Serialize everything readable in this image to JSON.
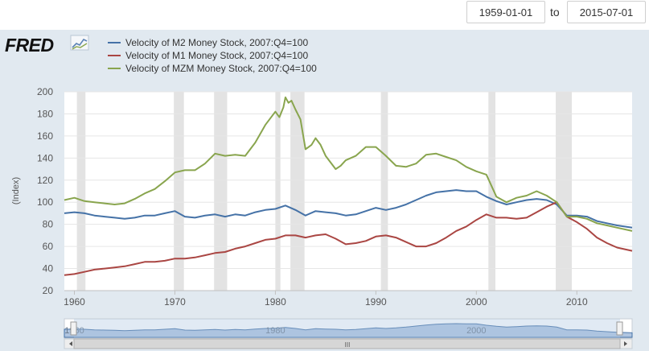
{
  "date_range": {
    "start": "1959-01-01",
    "to_label": "to",
    "end": "2015-07-01"
  },
  "logo": {
    "text": "FRED"
  },
  "chart_data": {
    "type": "line",
    "ylabel": "(Index)",
    "ylim": [
      20,
      200
    ],
    "yticks": [
      "20",
      "40",
      "60",
      "80",
      "100",
      "120",
      "140",
      "160",
      "180",
      "200"
    ],
    "xlim": [
      1959,
      2015.5
    ],
    "xticks": [
      "1960",
      "1970",
      "1980",
      "1990",
      "2000",
      "2010"
    ],
    "navigator_ticks": [
      "1960",
      "1980",
      "2000"
    ],
    "navigator_handle_glyph": "III",
    "recessions": [
      [
        1960.25,
        1961.1
      ],
      [
        1969.9,
        1970.9
      ],
      [
        1973.9,
        1975.2
      ],
      [
        1980.0,
        1980.5
      ],
      [
        1981.5,
        1982.9
      ],
      [
        1990.5,
        1991.2
      ],
      [
        2001.2,
        2001.9
      ],
      [
        2007.9,
        2009.5
      ]
    ],
    "series": [
      {
        "name": "Velocity of M2 Money Stock, 2007:Q4=100",
        "color": "#4572a7",
        "x": [
          1959,
          1960,
          1961,
          1962,
          1963,
          1964,
          1965,
          1966,
          1967,
          1968,
          1969,
          1970,
          1971,
          1972,
          1973,
          1974,
          1975,
          1976,
          1977,
          1978,
          1979,
          1980,
          1981,
          1982,
          1983,
          1984,
          1985,
          1986,
          1987,
          1988,
          1989,
          1990,
          1991,
          1992,
          1993,
          1994,
          1995,
          1996,
          1997,
          1998,
          1999,
          2000,
          2001,
          2002,
          2003,
          2004,
          2005,
          2006,
          2007,
          2008,
          2009,
          2010,
          2011,
          2012,
          2013,
          2014,
          2015.5
        ],
        "values": [
          90,
          91,
          90,
          88,
          87,
          86,
          85,
          86,
          88,
          88,
          90,
          92,
          87,
          86,
          88,
          89,
          87,
          89,
          88,
          91,
          93,
          94,
          97,
          93,
          88,
          92,
          91,
          90,
          88,
          89,
          92,
          95,
          93,
          95,
          98,
          102,
          106,
          109,
          110,
          111,
          110,
          110,
          105,
          101,
          98,
          100,
          102,
          103,
          102,
          98,
          88,
          88,
          87,
          83,
          81,
          79,
          77
        ]
      },
      {
        "name": "Velocity of M1 Money Stock, 2007:Q4=100",
        "color": "#aa4643",
        "x": [
          1959,
          1960,
          1961,
          1962,
          1963,
          1964,
          1965,
          1966,
          1967,
          1968,
          1969,
          1970,
          1971,
          1972,
          1973,
          1974,
          1975,
          1976,
          1977,
          1978,
          1979,
          1980,
          1981,
          1982,
          1983,
          1984,
          1985,
          1986,
          1987,
          1988,
          1989,
          1990,
          1991,
          1992,
          1993,
          1994,
          1995,
          1996,
          1997,
          1998,
          1999,
          2000,
          2001,
          2002,
          2003,
          2004,
          2005,
          2006,
          2007,
          2008,
          2009,
          2010,
          2011,
          2012,
          2013,
          2014,
          2015.5
        ],
        "values": [
          34,
          35,
          37,
          39,
          40,
          41,
          42,
          44,
          46,
          46,
          47,
          49,
          49,
          50,
          52,
          54,
          55,
          58,
          60,
          63,
          66,
          67,
          70,
          70,
          68,
          70,
          71,
          67,
          62,
          63,
          65,
          69,
          70,
          68,
          64,
          60,
          60,
          63,
          68,
          74,
          78,
          84,
          89,
          86,
          86,
          85,
          86,
          91,
          96,
          100,
          87,
          82,
          76,
          68,
          63,
          59,
          56
        ]
      },
      {
        "name": "Velocity of MZM Money Stock, 2007:Q4=100",
        "color": "#89a54e",
        "x": [
          1959,
          1960,
          1961,
          1962,
          1963,
          1964,
          1965,
          1966,
          1967,
          1968,
          1969,
          1970,
          1971,
          1972,
          1973,
          1974,
          1975,
          1976,
          1977,
          1978,
          1979,
          1980,
          1980.4,
          1980.8,
          1981,
          1981.3,
          1981.6,
          1982,
          1982.5,
          1983,
          1983.6,
          1984,
          1984.5,
          1985,
          1986,
          1986.5,
          1987,
          1988,
          1989,
          1990,
          1991,
          1992,
          1993,
          1994,
          1995,
          1996,
          1997,
          1998,
          1999,
          2000,
          2001,
          2002,
          2003,
          2004,
          2005,
          2006,
          2007,
          2008,
          2009,
          2010,
          2011,
          2012,
          2013,
          2014,
          2015.5
        ],
        "values": [
          102,
          104,
          101,
          100,
          99,
          98,
          99,
          103,
          108,
          112,
          119,
          127,
          129,
          129,
          135,
          144,
          142,
          143,
          142,
          154,
          170,
          182,
          177,
          186,
          195,
          190,
          192,
          184,
          175,
          148,
          152,
          158,
          152,
          142,
          130,
          133,
          138,
          142,
          150,
          150,
          142,
          133,
          132,
          135,
          143,
          144,
          141,
          138,
          132,
          128,
          125,
          105,
          100,
          104,
          106,
          110,
          106,
          100,
          87,
          87,
          85,
          81,
          79,
          77,
          74
        ]
      }
    ]
  }
}
